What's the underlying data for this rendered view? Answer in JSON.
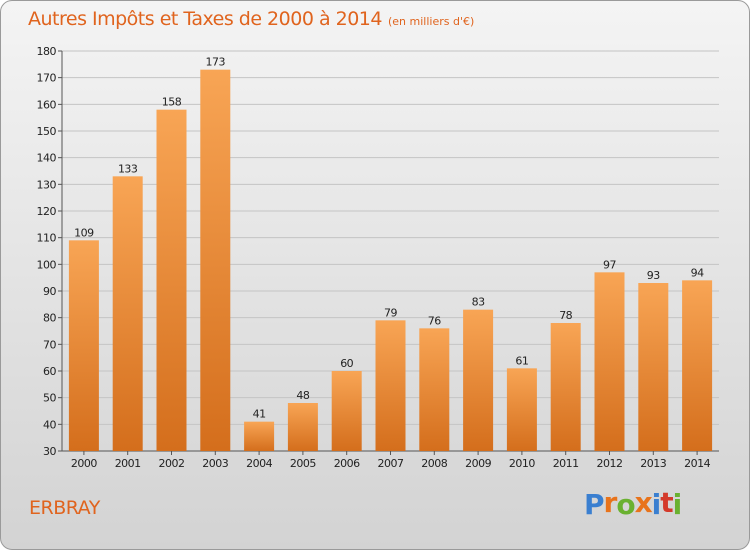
{
  "title": "Autres Impôts et Taxes de 2000 à 2014",
  "subtitle": "(en milliers d'€)",
  "commune": "ERBRAY",
  "logo": {
    "text": "Proxiti",
    "colors": [
      "#3a7fd0",
      "#e8731b",
      "#6ab130",
      "#e8731b",
      "#3a7fd0",
      "#d43a2b",
      "#6ab130"
    ]
  },
  "colors": {
    "bar_light": "#f8a555",
    "bar_dark": "#d46e1c",
    "title": "#e0641e"
  },
  "chart_data": {
    "type": "bar",
    "title": "Autres Impôts et Taxes de 2000 à 2014",
    "subtitle": "(en milliers d'€)",
    "categories": [
      "2000",
      "2001",
      "2002",
      "2003",
      "2004",
      "2005",
      "2006",
      "2007",
      "2008",
      "2009",
      "2010",
      "2011",
      "2012",
      "2013",
      "2014"
    ],
    "values": [
      109,
      133,
      158,
      173,
      41,
      48,
      60,
      79,
      76,
      83,
      61,
      78,
      97,
      93,
      94
    ],
    "ylim": [
      30,
      180
    ],
    "yticks": [
      30,
      40,
      50,
      60,
      70,
      80,
      90,
      100,
      110,
      120,
      130,
      140,
      150,
      160,
      170,
      180
    ],
    "grid": true,
    "xlabel": "",
    "ylabel": ""
  }
}
